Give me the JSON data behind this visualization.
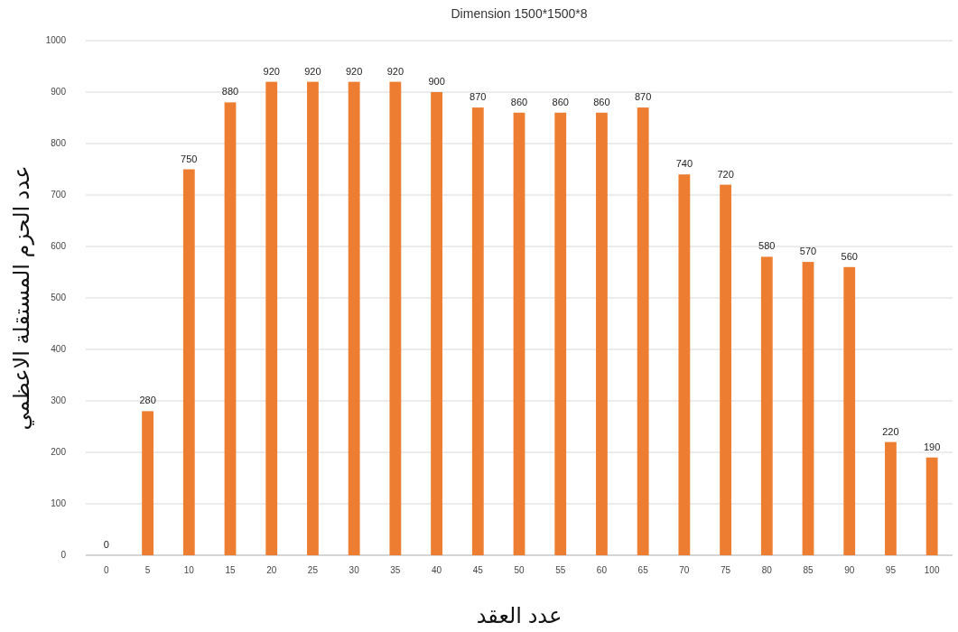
{
  "chart_data": {
    "type": "bar",
    "title": "Dimension 1500*1500*8",
    "xlabel": "عدد العقد",
    "ylabel": "عدد الحزم المستقلة الاعظمي",
    "categories": [
      "0",
      "5",
      "10",
      "15",
      "20",
      "25",
      "30",
      "35",
      "40",
      "45",
      "50",
      "55",
      "60",
      "65",
      "70",
      "75",
      "80",
      "85",
      "90",
      "95",
      "100"
    ],
    "values": [
      0,
      280,
      750,
      880,
      920,
      920,
      920,
      920,
      900,
      870,
      860,
      860,
      860,
      870,
      740,
      720,
      580,
      570,
      560,
      220,
      190
    ],
    "color": "#ed7d31",
    "ylim": [
      0,
      1000
    ],
    "yticks": [
      0,
      100,
      200,
      300,
      400,
      500,
      600,
      700,
      800,
      900,
      1000
    ],
    "grid": "y",
    "data_labels": true
  }
}
